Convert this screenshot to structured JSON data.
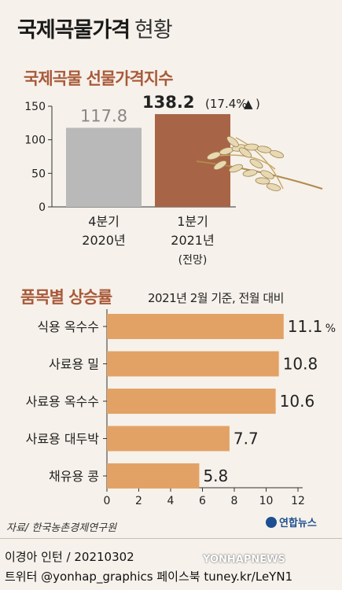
{
  "title": "국제곡물가격",
  "title_suffix": "현황",
  "chart_data": [
    {
      "type": "bar",
      "title": "국제곡물 선물가격지수",
      "categories": [
        [
          "4분기",
          "2020년"
        ],
        [
          "1분기",
          "2021년",
          "(전망)"
        ]
      ],
      "values": [
        117.8,
        138.2
      ],
      "value_labels": [
        "117.8",
        "138.2"
      ],
      "change_label": "(17.4%",
      "change_arrow": "▲",
      "ylim": [
        0,
        150
      ],
      "yticks": [
        0,
        50,
        100,
        150
      ],
      "ytick_labels": [
        "0",
        "50",
        "100",
        "150"
      ],
      "colors": [
        "#b9b9b9",
        "#a86447"
      ],
      "value_colors": [
        "#888888",
        "#222222"
      ]
    },
    {
      "type": "bar",
      "orientation": "horizontal",
      "title": "품목별 상승률",
      "note": "2021년 2월 기준, 전월 대비",
      "categories": [
        "식용 옥수수",
        "사료용 밀",
        "사료용 옥수수",
        "사료용 대두박",
        "채유용 콩"
      ],
      "values": [
        11.1,
        10.8,
        10.6,
        7.7,
        5.8
      ],
      "value_labels": [
        "11.1",
        "10.8",
        "10.6",
        "7.7",
        "5.8"
      ],
      "first_unit": "%",
      "xlim": [
        0,
        12
      ],
      "xticks": [
        0,
        2,
        4,
        6,
        8,
        10,
        12
      ],
      "xtick_labels": [
        "0",
        "2",
        "4",
        "6",
        "8",
        "10",
        "12"
      ],
      "color": "#e2a266"
    }
  ],
  "footer": {
    "source": "자료/ 한국농촌경제연구원",
    "logo": "연합뉴스",
    "credit": "이경아 인턴 / 20210302",
    "social": "트위터 @yonhap_graphics  페이스북 tuney.kr/LeYN1",
    "watermark": "YONHAPNEWS"
  }
}
